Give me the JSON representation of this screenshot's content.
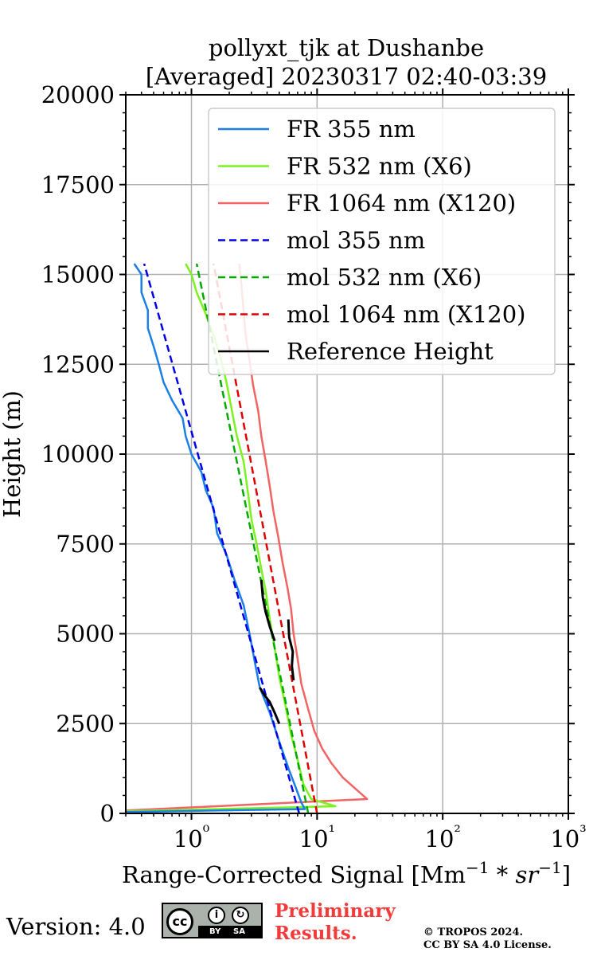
{
  "chart_data": {
    "type": "line",
    "title": [
      "pollyxt_tjk at Dushanbe",
      "[Averaged] 20230317 02:40-03:39"
    ],
    "xlabel": "Range-Corrected Signal [Mm⁻¹ * sr⁻¹]",
    "ylabel": "Height (m)",
    "xscale": "log",
    "xlim": [
      0.3,
      1000
    ],
    "ylim": [
      0,
      20000
    ],
    "xticks": [
      1,
      10,
      100,
      1000
    ],
    "xtick_labels": [
      "10⁰",
      "10¹",
      "10²",
      "10³"
    ],
    "yticks": [
      0,
      2500,
      5000,
      7500,
      10000,
      12500,
      15000,
      17500,
      20000
    ],
    "ytick_labels": [
      "0",
      "2500",
      "5000",
      "7500",
      "10000",
      "12500",
      "15000",
      "17500",
      "20000"
    ],
    "grid": true,
    "legend_position": "top-right",
    "series": [
      {
        "name": "FR 355 nm",
        "color": "#1a7fe6",
        "style": "solid",
        "points": [
          [
            0.3,
            40
          ],
          [
            8.0,
            120
          ],
          [
            7.5,
            300
          ],
          [
            6.8,
            700
          ],
          [
            6.0,
            1200
          ],
          [
            5.0,
            2000
          ],
          [
            4.2,
            2800
          ],
          [
            3.5,
            3500
          ],
          [
            3.2,
            4200
          ],
          [
            2.9,
            5000
          ],
          [
            2.6,
            5800
          ],
          [
            2.2,
            6500
          ],
          [
            1.9,
            7200
          ],
          [
            1.6,
            7800
          ],
          [
            1.5,
            8500
          ],
          [
            1.3,
            9000
          ],
          [
            1.2,
            9500
          ],
          [
            1.0,
            10000
          ],
          [
            0.9,
            10500
          ],
          [
            0.85,
            11000
          ],
          [
            0.7,
            11500
          ],
          [
            0.6,
            12000
          ],
          [
            0.55,
            12500
          ],
          [
            0.5,
            13000
          ],
          [
            0.45,
            13500
          ],
          [
            0.45,
            14000
          ],
          [
            0.4,
            14500
          ],
          [
            0.4,
            15000
          ],
          [
            0.35,
            15300
          ]
        ]
      },
      {
        "name": "FR 532 nm (X6)",
        "color": "#7cf21e",
        "style": "solid",
        "points": [
          [
            0.3,
            60
          ],
          [
            14.0,
            200
          ],
          [
            9.0,
            400
          ],
          [
            7.8,
            800
          ],
          [
            7.0,
            1500
          ],
          [
            6.2,
            2200
          ],
          [
            5.6,
            3000
          ],
          [
            5.0,
            3800
          ],
          [
            4.6,
            4600
          ],
          [
            4.2,
            5400
          ],
          [
            3.9,
            6200
          ],
          [
            3.6,
            6800
          ],
          [
            3.3,
            7500
          ],
          [
            3.0,
            8200
          ],
          [
            2.8,
            9000
          ],
          [
            2.6,
            9800
          ],
          [
            2.3,
            10500
          ],
          [
            2.1,
            11200
          ],
          [
            1.9,
            12000
          ],
          [
            1.7,
            12700
          ],
          [
            1.5,
            13300
          ],
          [
            1.3,
            13900
          ],
          [
            1.1,
            14500
          ],
          [
            1.0,
            15000
          ],
          [
            0.9,
            15300
          ]
        ]
      },
      {
        "name": "FR 1064 nm (X120)",
        "color": "#f26464",
        "style": "solid",
        "points": [
          [
            0.3,
            80
          ],
          [
            25.0,
            400
          ],
          [
            20.0,
            700
          ],
          [
            16.0,
            1000
          ],
          [
            13.0,
            1400
          ],
          [
            11.0,
            1800
          ],
          [
            9.5,
            2300
          ],
          [
            8.5,
            2900
          ],
          [
            7.5,
            3600
          ],
          [
            7.0,
            4300
          ],
          [
            6.5,
            5000
          ],
          [
            6.2,
            5700
          ],
          [
            5.8,
            6300
          ],
          [
            5.3,
            7000
          ],
          [
            4.9,
            7700
          ],
          [
            4.5,
            8400
          ],
          [
            4.2,
            9100
          ],
          [
            3.9,
            9800
          ],
          [
            3.6,
            10500
          ],
          [
            3.4,
            11200
          ],
          [
            3.1,
            11900
          ],
          [
            2.9,
            12600
          ],
          [
            2.7,
            13300
          ],
          [
            2.6,
            14000
          ],
          [
            2.5,
            14700
          ],
          [
            2.4,
            15300
          ]
        ]
      },
      {
        "name": "mol 355 nm",
        "color": "#0000e6",
        "style": "dashed",
        "points": [
          [
            7.2,
            0
          ],
          [
            0.42,
            15300
          ]
        ]
      },
      {
        "name": "mol 532 nm (X6)",
        "color": "#00aa00",
        "style": "dashed",
        "points": [
          [
            8.5,
            0
          ],
          [
            1.1,
            15300
          ]
        ]
      },
      {
        "name": "mol 1064 nm (X120)",
        "color": "#dd0000",
        "style": "dashed",
        "points": [
          [
            10.0,
            0
          ],
          [
            1.5,
            15300
          ]
        ]
      },
      {
        "name": "Reference Height",
        "color": "#000000",
        "style": "solid",
        "segments": [
          {
            "range": [
              2500,
              3500
            ],
            "points": [
              [
                5.0,
                2500
              ],
              [
                4.6,
                2800
              ],
              [
                4.2,
                3100
              ],
              [
                3.8,
                3300
              ],
              [
                3.5,
                3500
              ]
            ]
          },
          {
            "range": [
              4800,
              6500
            ],
            "points": [
              [
                4.6,
                4800
              ],
              [
                4.2,
                5200
              ],
              [
                3.9,
                5600
              ],
              [
                3.7,
                6000
              ],
              [
                3.6,
                6500
              ]
            ]
          },
          {
            "range": [
              3700,
              5400
            ],
            "points": [
              [
                6.5,
                3700
              ],
              [
                6.3,
                4100
              ],
              [
                6.4,
                4500
              ],
              [
                6.0,
                4900
              ],
              [
                5.9,
                5400
              ]
            ]
          }
        ]
      }
    ]
  },
  "footer": {
    "version": "Version: 4.0",
    "license_badge": {
      "cc": "cc",
      "by": "BY",
      "sa": "SA"
    },
    "preliminary": [
      "Preliminary",
      "Results."
    ],
    "copyright": [
      "© TROPOS 2024.",
      "CC BY SA 4.0 License."
    ]
  }
}
